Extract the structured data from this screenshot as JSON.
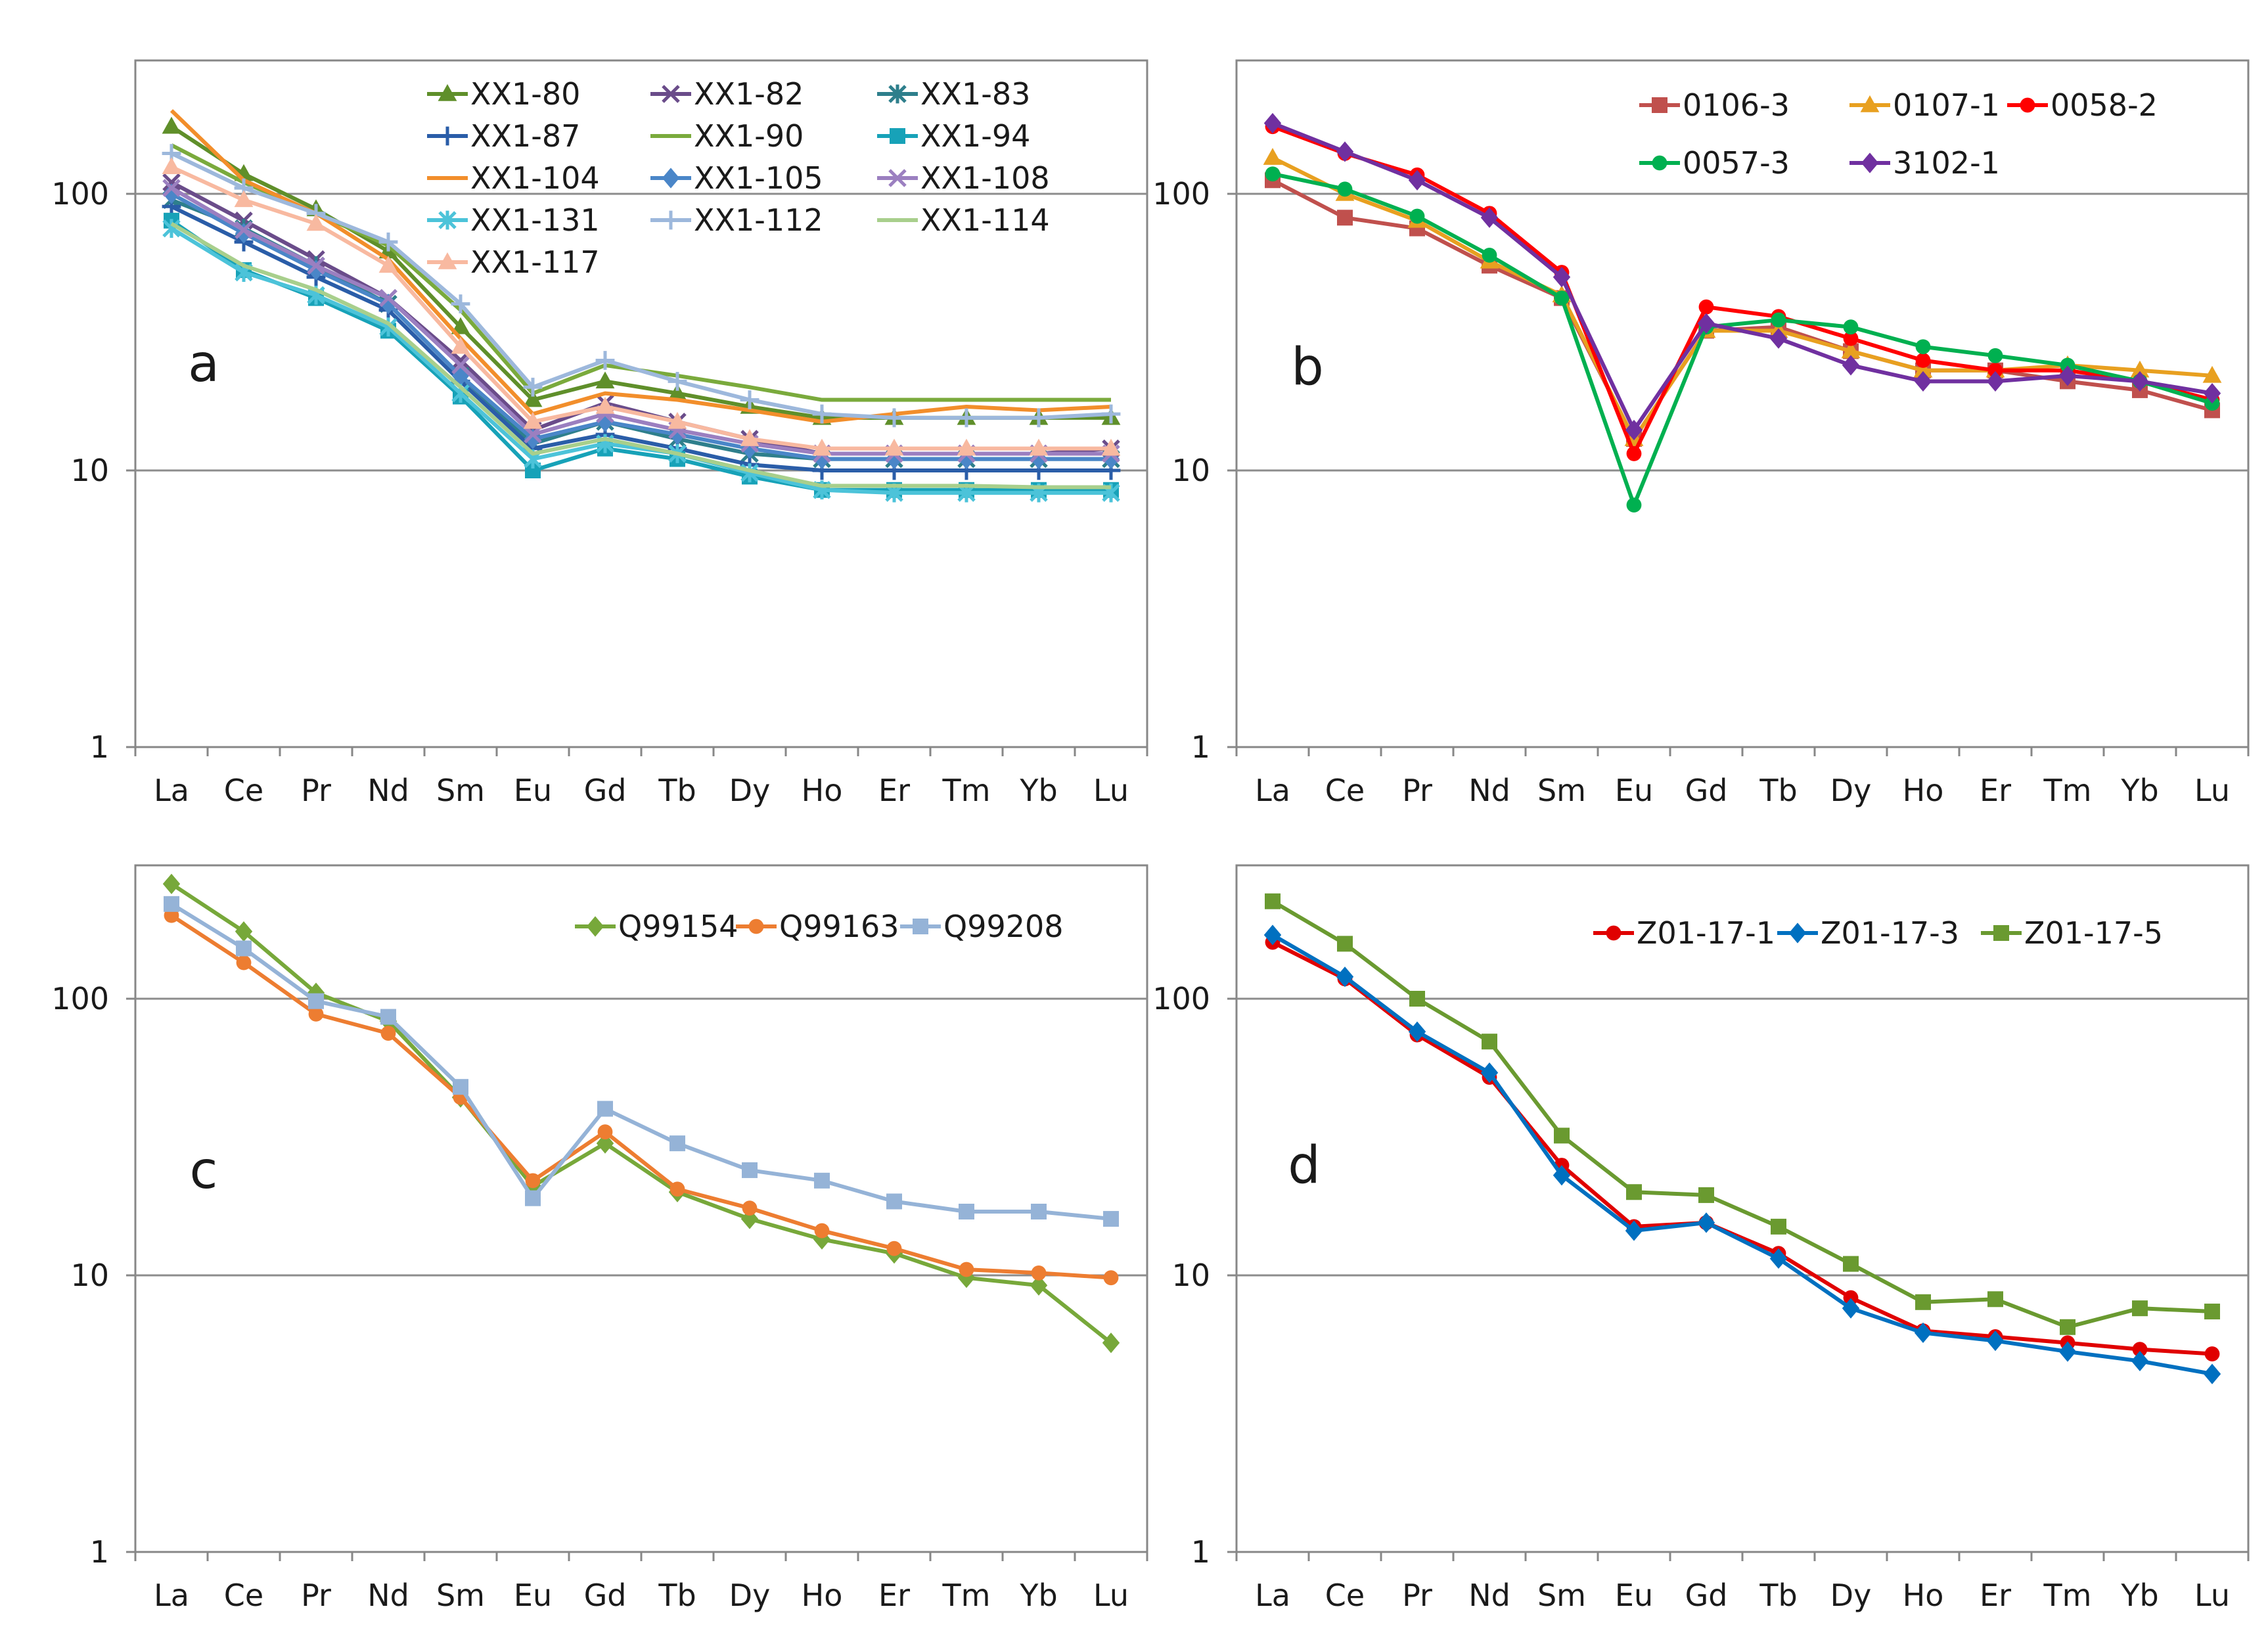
{
  "colors": {
    "background": "#ffffff",
    "axis": "#878787",
    "grid": "#8c8c8c",
    "text": "#1a1a1a"
  },
  "chart_data": [
    {
      "type": "line",
      "panel": "a",
      "yscale": "log",
      "ylim": [
        1,
        300
      ],
      "yticks": [
        1,
        10,
        100
      ],
      "ytick_labels": [
        "1",
        "10",
        "100"
      ],
      "grid": true,
      "legend_position": "top-right",
      "legend_columns": 3,
      "categories": [
        "La",
        "Ce",
        "Pr",
        "Nd",
        "Sm",
        "Eu",
        "Gd",
        "Tb",
        "Dy",
        "Ho",
        "Er",
        "Tm",
        "Yb",
        "Lu"
      ],
      "series": [
        {
          "name": "XX1-80",
          "color": "#5f8f2a",
          "marker": "triangle",
          "values": [
            175,
            118,
            88,
            62,
            33,
            18,
            21,
            19,
            17,
            15.5,
            15.5,
            15.5,
            15.5,
            15.5
          ]
        },
        {
          "name": "XX1-82",
          "color": "#6a4c8a",
          "marker": "x",
          "values": [
            110,
            80,
            58,
            42,
            25,
            14,
            17.5,
            15,
            13,
            11.5,
            11.5,
            11.5,
            11.5,
            12
          ]
        },
        {
          "name": "XX1-83",
          "color": "#2e7f8c",
          "marker": "asterisk",
          "values": [
            95,
            75,
            55,
            40,
            22,
            12.5,
            15,
            13,
            11.5,
            11,
            11,
            11,
            11,
            11
          ]
        },
        {
          "name": "XX1-87",
          "color": "#2a5da8",
          "marker": "plus",
          "values": [
            90,
            67,
            50,
            38,
            21,
            12,
            13.5,
            12,
            10.5,
            10,
            10,
            10,
            10,
            10
          ]
        },
        {
          "name": "XX1-90",
          "color": "#7aaa3c",
          "marker": "none",
          "values": [
            150,
            110,
            85,
            65,
            38,
            19,
            24,
            22,
            20,
            18,
            18,
            18,
            18,
            18
          ]
        },
        {
          "name": "XX1-94",
          "color": "#17a2b8",
          "marker": "square",
          "values": [
            80,
            53,
            42,
            32,
            18.5,
            10,
            12,
            11,
            9.5,
            8.5,
            8.5,
            8.5,
            8.5,
            8.5
          ]
        },
        {
          "name": "XX1-104",
          "color": "#f28e2b",
          "marker": "none",
          "values": [
            200,
            112,
            85,
            58,
            30,
            16,
            19,
            18,
            16.5,
            15,
            16,
            17,
            16.5,
            17
          ]
        },
        {
          "name": "XX1-105",
          "color": "#4a86c8",
          "marker": "diamond",
          "values": [
            100,
            72,
            53,
            40,
            22,
            13,
            15,
            13.5,
            12,
            11,
            11,
            11,
            11,
            11
          ]
        },
        {
          "name": "XX1-108",
          "color": "#9b7fc0",
          "marker": "x",
          "values": [
            105,
            74,
            55,
            42,
            24,
            13.5,
            16,
            14,
            12.5,
            11.5,
            11.5,
            11.5,
            11.5,
            11.5
          ]
        },
        {
          "name": "XX1-131",
          "color": "#4cc3d9",
          "marker": "asterisk",
          "values": [
            75,
            52,
            43,
            33,
            19,
            11,
            12.5,
            11.5,
            9.8,
            8.5,
            8.3,
            8.3,
            8.3,
            8.3
          ]
        },
        {
          "name": "XX1-112",
          "color": "#9db8dc",
          "marker": "plus",
          "values": [
            140,
            105,
            85,
            67,
            40,
            20,
            25,
            21,
            18,
            16,
            15.5,
            15.5,
            15.5,
            16
          ]
        },
        {
          "name": "XX1-114",
          "color": "#a8cf8c",
          "marker": "none",
          "values": [
            78,
            55,
            45,
            34,
            20,
            11.5,
            13,
            11.5,
            10,
            8.8,
            8.8,
            8.8,
            8.7,
            8.7
          ]
        },
        {
          "name": "XX1-117",
          "color": "#f8b9a0",
          "marker": "triangle",
          "values": [
            125,
            95,
            78,
            55,
            28,
            15,
            17,
            15,
            13,
            12,
            12,
            12,
            12,
            12
          ]
        }
      ],
      "annotations": [
        "a"
      ]
    },
    {
      "type": "line",
      "panel": "b",
      "yscale": "log",
      "ylim": [
        1,
        300
      ],
      "yticks": [
        1,
        10,
        100
      ],
      "ytick_labels": [
        "1",
        "10",
        "100"
      ],
      "grid": true,
      "legend_position": "top-right",
      "legend_columns": 3,
      "categories": [
        "La",
        "Ce",
        "Pr",
        "Nd",
        "Sm",
        "Eu",
        "Gd",
        "Tb",
        "Dy",
        "Ho",
        "Er",
        "Tm",
        "Yb",
        "Lu"
      ],
      "series": [
        {
          "name": "0106-3",
          "color": "#c0504d",
          "marker": "square",
          "values": [
            112,
            82,
            75,
            55,
            42,
            13,
            32,
            33,
            27,
            23,
            23,
            21,
            19.5,
            16.5
          ]
        },
        {
          "name": "0107-1",
          "color": "#e8a020",
          "marker": "triangle",
          "values": [
            135,
            100,
            80,
            57,
            43,
            13,
            32,
            32,
            27,
            23,
            23,
            24,
            23,
            22
          ]
        },
        {
          "name": "0058-2",
          "color": "#ff0000",
          "marker": "circle",
          "values": [
            175,
            140,
            117,
            85,
            52,
            11.5,
            39,
            36,
            30,
            25,
            23,
            23,
            21,
            18
          ]
        },
        {
          "name": "0057-3",
          "color": "#00b050",
          "marker": "circle",
          "values": [
            118,
            104,
            83,
            60,
            42,
            7.5,
            33,
            35,
            33,
            28,
            26,
            24,
            21,
            17.5
          ]
        },
        {
          "name": "3102-1",
          "color": "#7030a0",
          "marker": "diamond",
          "values": [
            180,
            142,
            112,
            82,
            50,
            14,
            34,
            30,
            24,
            21,
            21,
            22,
            21,
            19
          ]
        }
      ],
      "annotations": [
        "b"
      ]
    },
    {
      "type": "line",
      "panel": "c",
      "yscale": "log",
      "ylim": [
        1,
        300
      ],
      "yticks": [
        1,
        10,
        100
      ],
      "ytick_labels": [
        "1",
        "10",
        "100"
      ],
      "grid": true,
      "legend_position": "top-right",
      "legend_columns": 3,
      "categories": [
        "La",
        "Ce",
        "Pr",
        "Nd",
        "Sm",
        "Eu",
        "Gd",
        "Tb",
        "Dy",
        "Ho",
        "Er",
        "Tm",
        "Yb",
        "Lu"
      ],
      "series": [
        {
          "name": "Q99154",
          "color": "#77a83a",
          "marker": "diamond",
          "values": [
            260,
            175,
            105,
            83,
            44,
            21,
            30,
            20,
            16,
            13.5,
            12,
            9.8,
            9.2,
            5.7
          ]
        },
        {
          "name": "Q99163",
          "color": "#ed7d31",
          "marker": "circle",
          "values": [
            200,
            135,
            88,
            75,
            44,
            22,
            33,
            20.5,
            17.5,
            14.5,
            12.5,
            10.5,
            10.2,
            9.8
          ]
        },
        {
          "name": "Q99208",
          "color": "#95b3d7",
          "marker": "square",
          "values": [
            220,
            152,
            98,
            86,
            48,
            19,
            40,
            30,
            24,
            22,
            18.5,
            17,
            17,
            16
          ]
        }
      ],
      "annotations": [
        "c"
      ]
    },
    {
      "type": "line",
      "panel": "d",
      "yscale": "log",
      "ylim": [
        1,
        300
      ],
      "yticks": [
        1,
        10,
        100
      ],
      "ytick_labels": [
        "1",
        "10",
        "100"
      ],
      "grid": true,
      "legend_position": "top-right",
      "legend_columns": 3,
      "categories": [
        "La",
        "Ce",
        "Pr",
        "Nd",
        "Sm",
        "Eu",
        "Gd",
        "Tb",
        "Dy",
        "Ho",
        "Er",
        "Tm",
        "Yb",
        "Lu"
      ],
      "series": [
        {
          "name": "Z01-17-1",
          "color": "#e00000",
          "marker": "circle",
          "values": [
            160,
            118,
            74,
            52,
            25,
            15,
            15.5,
            12,
            8.3,
            6.3,
            6,
            5.7,
            5.4,
            5.2
          ]
        },
        {
          "name": "Z01-17-3",
          "color": "#0070c0",
          "marker": "diamond",
          "values": [
            170,
            120,
            76,
            54,
            23,
            14.5,
            15.5,
            11.5,
            7.6,
            6.2,
            5.8,
            5.3,
            4.9,
            4.4
          ]
        },
        {
          "name": "Z01-17-5",
          "color": "#6a9a30",
          "marker": "square",
          "values": [
            225,
            158,
            100,
            70,
            32,
            20,
            19.5,
            15,
            11,
            8,
            8.2,
            6.5,
            7.6,
            7.4
          ]
        }
      ],
      "annotations": [
        "d"
      ]
    }
  ]
}
